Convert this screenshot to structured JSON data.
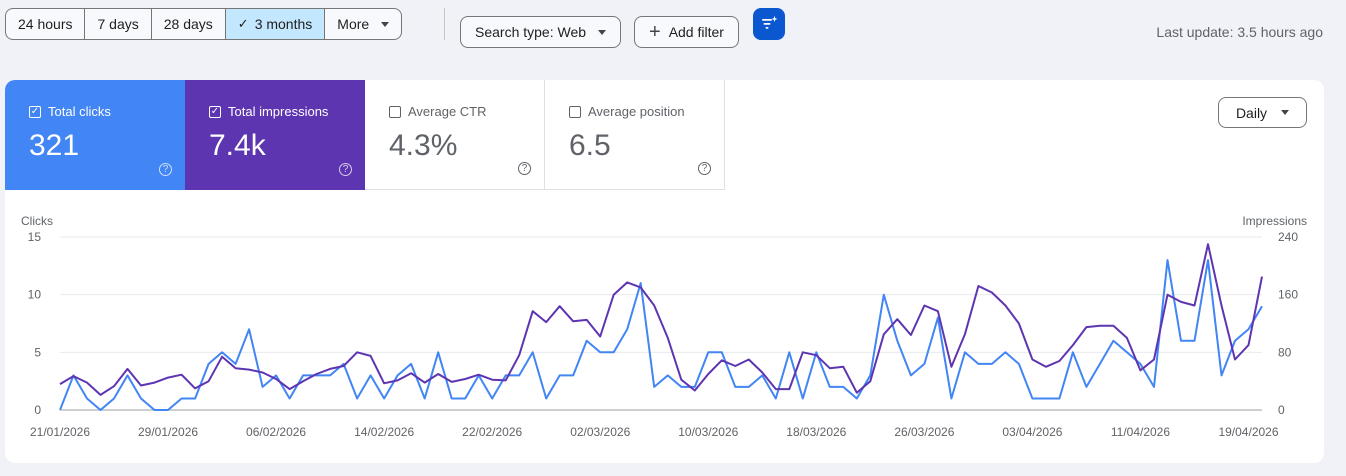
{
  "date_range": {
    "buttons": [
      {
        "label": "24 hours"
      },
      {
        "label": "7 days"
      },
      {
        "label": "28 days"
      },
      {
        "label": "3 months",
        "selected": true
      },
      {
        "label": "More"
      }
    ]
  },
  "filters": {
    "search_type": "Search type: Web",
    "add_filter": "Add filter"
  },
  "last_update": "Last update: 3.5 hours ago",
  "metrics": [
    {
      "label": "Total clicks",
      "value": "321",
      "checked": true,
      "color": "#4285f4"
    },
    {
      "label": "Total impressions",
      "value": "7.4k",
      "checked": true,
      "color": "#5e35b1"
    },
    {
      "label": "Average CTR",
      "value": "4.3%",
      "checked": false
    },
    {
      "label": "Average position",
      "value": "6.5",
      "checked": false
    }
  ],
  "granularity": "Daily",
  "chart_data": {
    "type": "line",
    "ylabel_left": "Clicks",
    "ylabel_right": "Impressions",
    "y_left_ticks": [
      "15",
      "10",
      "5",
      "0"
    ],
    "y_right_ticks": [
      "240",
      "160",
      "80",
      "0"
    ],
    "ylim_left": [
      0,
      15
    ],
    "ylim_right": [
      0,
      240
    ],
    "x_tick_labels": [
      "21/01/2026",
      "29/01/2026",
      "06/02/2026",
      "14/02/2026",
      "22/02/2026",
      "02/03/2026",
      "10/03/2026",
      "18/03/2026",
      "26/03/2026",
      "03/04/2026",
      "11/04/2026",
      "19/04/2026"
    ],
    "grid": true,
    "series": [
      {
        "name": "Clicks",
        "axis": "left",
        "color": "#4285f4",
        "values": [
          0,
          3,
          1,
          0,
          1,
          3,
          1,
          0,
          0,
          1,
          1,
          4,
          5,
          4,
          7,
          2,
          3,
          1,
          3,
          3,
          3,
          4,
          1,
          3,
          1,
          3,
          4,
          1,
          5,
          1,
          1,
          3,
          1,
          3,
          3,
          5,
          1,
          3,
          3,
          6,
          5,
          5,
          7,
          11,
          2,
          3,
          2,
          2,
          5,
          5,
          2,
          2,
          3,
          1,
          5,
          1,
          5,
          2,
          2,
          1,
          3,
          10,
          6,
          3,
          4,
          8,
          1,
          5,
          4,
          4,
          5,
          4,
          1,
          1,
          1,
          5,
          2,
          4,
          6,
          5,
          4,
          2,
          13,
          6,
          6,
          13,
          3,
          6,
          7,
          9
        ]
      },
      {
        "name": "Impressions",
        "axis": "right",
        "color": "#5e35b1",
        "values": [
          36,
          47,
          38,
          21,
          33,
          57,
          34,
          38,
          45,
          49,
          30,
          40,
          74,
          58,
          56,
          52,
          43,
          29,
          40,
          50,
          57,
          61,
          80,
          75,
          37,
          41,
          51,
          38,
          50,
          39,
          43,
          49,
          42,
          41,
          76,
          137,
          122,
          144,
          123,
          125,
          102,
          160,
          177,
          170,
          145,
          100,
          42,
          27,
          50,
          69,
          61,
          70,
          52,
          29,
          29,
          80,
          76,
          58,
          60,
          24,
          40,
          105,
          126,
          104,
          145,
          137,
          60,
          105,
          172,
          163,
          145,
          120,
          70,
          60,
          68,
          90,
          115,
          117,
          117,
          100,
          55,
          70,
          160,
          150,
          145,
          230,
          145,
          70,
          90,
          185
        ]
      }
    ]
  }
}
